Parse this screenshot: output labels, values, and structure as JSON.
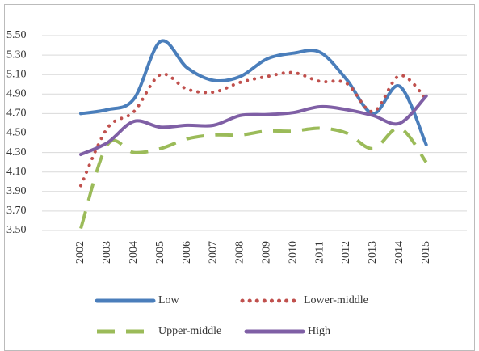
{
  "chart_data": {
    "type": "line",
    "categories": [
      "2002",
      "2003",
      "2004",
      "2005",
      "2006",
      "2007",
      "2008",
      "2009",
      "2010",
      "2011",
      "2012",
      "2013",
      "2014",
      "2015"
    ],
    "series": [
      {
        "name": "Low",
        "color": "#4a7ebb",
        "style": "solid",
        "values": [
          4.7,
          4.74,
          4.85,
          5.44,
          5.17,
          5.04,
          5.08,
          5.26,
          5.32,
          5.33,
          5.05,
          4.7,
          4.98,
          4.38
        ]
      },
      {
        "name": "Lower-middle",
        "color": "#c0504d",
        "style": "dotted",
        "values": [
          3.96,
          4.55,
          4.72,
          5.1,
          4.95,
          4.92,
          5.02,
          5.08,
          5.12,
          5.03,
          5.01,
          4.72,
          5.09,
          4.85
        ]
      },
      {
        "name": "Upper-middle",
        "color": "#9bbb59",
        "style": "dashed",
        "values": [
          3.52,
          4.38,
          4.3,
          4.34,
          4.44,
          4.48,
          4.48,
          4.52,
          4.52,
          4.55,
          4.5,
          4.34,
          4.55,
          4.2
        ]
      },
      {
        "name": "High",
        "color": "#7f5fa5",
        "style": "solid",
        "values": [
          4.28,
          4.4,
          4.62,
          4.56,
          4.58,
          4.58,
          4.68,
          4.69,
          4.71,
          4.77,
          4.74,
          4.68,
          4.6,
          4.88
        ]
      }
    ],
    "ylim": [
      3.5,
      5.5
    ],
    "yticks": [
      {
        "value": 3.5,
        "label": "3.50"
      },
      {
        "value": 3.7,
        "label": "3.70"
      },
      {
        "value": 3.9,
        "label": "3.90"
      },
      {
        "value": 4.1,
        "label": "4.10"
      },
      {
        "value": 4.3,
        "label": "4.30"
      },
      {
        "value": 4.5,
        "label": "4.50"
      },
      {
        "value": 4.7,
        "label": "4.70"
      },
      {
        "value": 4.9,
        "label": "4.90"
      },
      {
        "value": 5.1,
        "label": "5.10"
      },
      {
        "value": 5.3,
        "label": "5.30"
      },
      {
        "value": 5.5,
        "label": "5.50"
      }
    ],
    "grid": true,
    "legend": "bottom"
  }
}
